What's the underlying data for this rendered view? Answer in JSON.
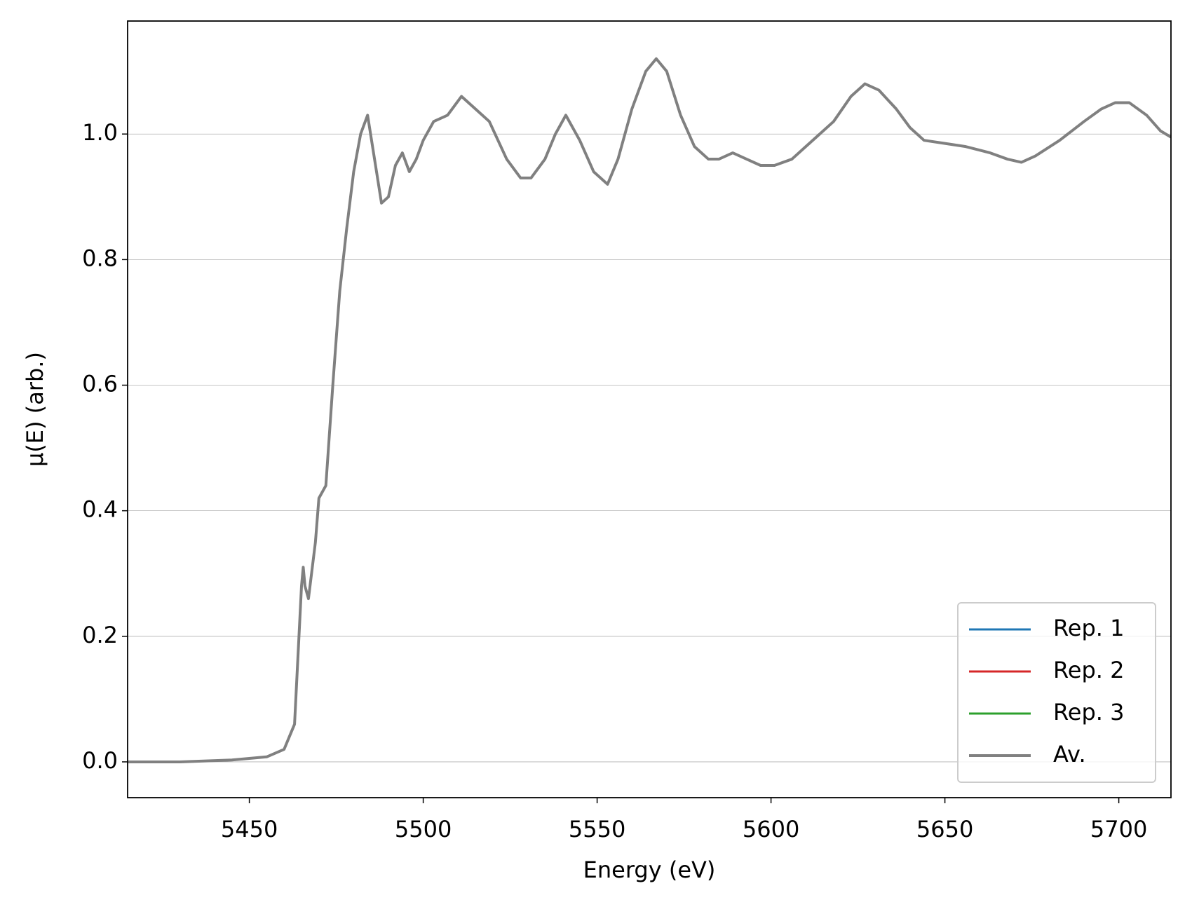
{
  "chart_data": {
    "type": "line",
    "xlabel": "Energy (eV)",
    "ylabel": "μ(E) (arb.)",
    "x": [
      5415,
      5430,
      5445,
      5455,
      5460,
      5463,
      5465,
      5465.5,
      5466,
      5467,
      5469,
      5470,
      5472,
      5474,
      5476,
      5478,
      5480,
      5482,
      5484,
      5486,
      5488,
      5490,
      5492,
      5494,
      5496,
      5498,
      5500,
      5503,
      5507,
      5511,
      5515,
      5519,
      5524,
      5528,
      5531,
      5535,
      5538,
      5541,
      5545,
      5549,
      5553,
      5556,
      5560,
      5564,
      5567,
      5570,
      5574,
      5578,
      5582,
      5585,
      5589,
      5593,
      5597,
      5601,
      5606,
      5610,
      5614,
      5618,
      5623,
      5627,
      5631,
      5636,
      5640,
      5644,
      5650,
      5656,
      5663,
      5668,
      5672,
      5676,
      5683,
      5690,
      5695,
      5699,
      5703,
      5708,
      5712,
      5715
    ],
    "series": [
      {
        "name": "Rep. 1",
        "color": "#1f77b4",
        "values": [
          0,
          0,
          0.003,
          0.008,
          0.02,
          0.06,
          0.28,
          0.31,
          0.28,
          0.26,
          0.35,
          0.42,
          0.44,
          0.6,
          0.75,
          0.85,
          0.94,
          1.0,
          1.03,
          0.96,
          0.89,
          0.9,
          0.95,
          0.97,
          0.94,
          0.96,
          0.99,
          1.02,
          1.03,
          1.06,
          1.04,
          1.02,
          0.96,
          0.93,
          0.93,
          0.96,
          1.0,
          1.03,
          0.99,
          0.94,
          0.92,
          0.96,
          1.04,
          1.1,
          1.12,
          1.1,
          1.03,
          0.98,
          0.96,
          0.96,
          0.97,
          0.96,
          0.95,
          0.95,
          0.96,
          0.98,
          1.0,
          1.02,
          1.06,
          1.08,
          1.07,
          1.04,
          1.01,
          0.99,
          0.985,
          0.98,
          0.97,
          0.96,
          0.955,
          0.965,
          0.99,
          1.02,
          1.04,
          1.05,
          1.05,
          1.03,
          1.005,
          0.995
        ]
      },
      {
        "name": "Rep. 2",
        "color": "#d62728",
        "values": [
          0,
          0,
          0.003,
          0.008,
          0.02,
          0.06,
          0.28,
          0.31,
          0.28,
          0.26,
          0.35,
          0.42,
          0.44,
          0.6,
          0.75,
          0.85,
          0.94,
          1.0,
          1.03,
          0.96,
          0.89,
          0.9,
          0.95,
          0.97,
          0.94,
          0.96,
          0.99,
          1.02,
          1.03,
          1.06,
          1.04,
          1.02,
          0.96,
          0.93,
          0.93,
          0.96,
          1.0,
          1.03,
          0.99,
          0.94,
          0.92,
          0.96,
          1.04,
          1.1,
          1.12,
          1.1,
          1.03,
          0.98,
          0.96,
          0.96,
          0.97,
          0.96,
          0.95,
          0.95,
          0.96,
          0.98,
          1.0,
          1.02,
          1.06,
          1.08,
          1.07,
          1.04,
          1.01,
          0.99,
          0.985,
          0.98,
          0.97,
          0.96,
          0.955,
          0.965,
          0.99,
          1.02,
          1.04,
          1.05,
          1.05,
          1.03,
          1.005,
          0.995
        ]
      },
      {
        "name": "Rep. 3",
        "color": "#2ca02c",
        "values": [
          0,
          0,
          0.003,
          0.008,
          0.02,
          0.06,
          0.28,
          0.31,
          0.28,
          0.26,
          0.35,
          0.42,
          0.44,
          0.6,
          0.75,
          0.85,
          0.94,
          1.0,
          1.03,
          0.96,
          0.89,
          0.9,
          0.95,
          0.97,
          0.94,
          0.96,
          0.99,
          1.02,
          1.03,
          1.06,
          1.04,
          1.02,
          0.96,
          0.93,
          0.93,
          0.96,
          1.0,
          1.03,
          0.99,
          0.94,
          0.92,
          0.96,
          1.04,
          1.1,
          1.12,
          1.1,
          1.03,
          0.98,
          0.96,
          0.96,
          0.97,
          0.96,
          0.95,
          0.95,
          0.96,
          0.98,
          1.0,
          1.02,
          1.06,
          1.08,
          1.07,
          1.04,
          1.01,
          0.99,
          0.985,
          0.98,
          0.97,
          0.96,
          0.955,
          0.965,
          0.99,
          1.02,
          1.04,
          1.05,
          1.05,
          1.03,
          1.005,
          0.995
        ]
      },
      {
        "name": "Av.",
        "color": "#808080",
        "values": [
          0,
          0,
          0.003,
          0.008,
          0.02,
          0.06,
          0.28,
          0.31,
          0.28,
          0.26,
          0.35,
          0.42,
          0.44,
          0.6,
          0.75,
          0.85,
          0.94,
          1.0,
          1.03,
          0.96,
          0.89,
          0.9,
          0.95,
          0.97,
          0.94,
          0.96,
          0.99,
          1.02,
          1.03,
          1.06,
          1.04,
          1.02,
          0.96,
          0.93,
          0.93,
          0.96,
          1.0,
          1.03,
          0.99,
          0.94,
          0.92,
          0.96,
          1.04,
          1.1,
          1.12,
          1.1,
          1.03,
          0.98,
          0.96,
          0.96,
          0.97,
          0.96,
          0.95,
          0.95,
          0.96,
          0.98,
          1.0,
          1.02,
          1.06,
          1.08,
          1.07,
          1.04,
          1.01,
          0.99,
          0.985,
          0.98,
          0.97,
          0.96,
          0.955,
          0.965,
          0.99,
          1.02,
          1.04,
          1.05,
          1.05,
          1.03,
          1.005,
          0.995
        ]
      }
    ],
    "xlim": [
      5415,
      5715
    ],
    "xticks": [
      5450,
      5500,
      5550,
      5600,
      5650,
      5700
    ],
    "ylim": [
      -0.057,
      1.18
    ],
    "yticks": [
      {
        "value": 0,
        "label": "0.0"
      },
      0.2,
      0.4,
      0.6,
      0.8,
      {
        "value": 1,
        "label": "1.0"
      }
    ],
    "grid": "y",
    "legend": "lower right"
  }
}
